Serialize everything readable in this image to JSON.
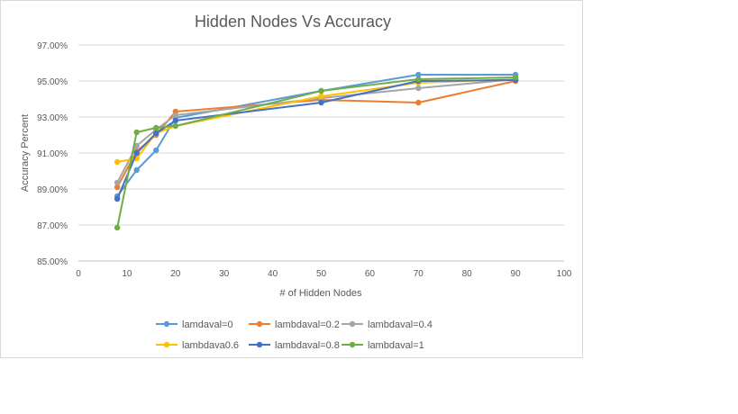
{
  "chart_data": {
    "type": "line",
    "title": "Hidden Nodes Vs Accuracy",
    "xlabel": "# of Hidden Nodes",
    "ylabel": "Accuracy Percent",
    "xlim": [
      0,
      100
    ],
    "ylim": [
      85,
      97
    ],
    "xticks": [
      0,
      10,
      20,
      30,
      40,
      50,
      60,
      70,
      80,
      90,
      100
    ],
    "xtick_labels": [
      "0",
      "10",
      "20",
      "30",
      "40",
      "50",
      "60",
      "70",
      "80",
      "90",
      "100"
    ],
    "yticks": [
      85,
      87,
      89,
      91,
      93,
      95,
      97
    ],
    "ytick_labels": [
      "85.00%",
      "87.00%",
      "89.00%",
      "91.00%",
      "93.00%",
      "95.00%",
      "97.00%"
    ],
    "grid": "horizontal",
    "legend_position": "bottom",
    "x": [
      8,
      12,
      16,
      20,
      50,
      70,
      90
    ],
    "series": [
      {
        "name": "lamdaval=0",
        "color": "#5B9BD5",
        "values": [
          88.6,
          90.05,
          91.15,
          92.95,
          94.45,
          95.35,
          95.35
        ]
      },
      {
        "name": "lambdaval=0.2",
        "color": "#ED7D31",
        "values": [
          89.1,
          91.1,
          92.0,
          93.3,
          93.95,
          93.8,
          95.0
        ]
      },
      {
        "name": "lambdaval=0.4",
        "color": "#A5A5A5",
        "values": [
          89.35,
          91.4,
          92.3,
          93.1,
          94.05,
          94.6,
          95.1
        ]
      },
      {
        "name": "lambdava0.6",
        "color": "#FFC000",
        "values": [
          90.5,
          90.7,
          92.1,
          92.5,
          94.15,
          94.9,
          95.1
        ]
      },
      {
        "name": "lambdaval=0.8",
        "color": "#4472C4",
        "values": [
          88.45,
          91.0,
          92.1,
          92.8,
          93.8,
          95.0,
          95.05
        ]
      },
      {
        "name": "lambdaval=1",
        "color": "#70AD47",
        "values": [
          86.85,
          92.15,
          92.4,
          92.5,
          94.45,
          95.1,
          95.2
        ]
      }
    ]
  }
}
